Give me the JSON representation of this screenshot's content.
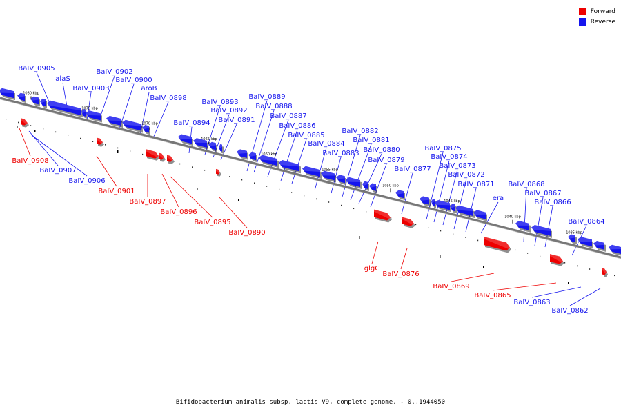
{
  "caption": "Bifidobacterium animalis subsp. lactis V9, complete genome. - 0..1944050",
  "legend": [
    {
      "label": "Forward",
      "color": "#ee0000"
    },
    {
      "label": "Reverse",
      "color": "#1515ee"
    }
  ],
  "colors": {
    "forward": "#ee0000",
    "reverse": "#1515ee",
    "backbone": "#777777"
  },
  "ticks": [
    "1080 kbp",
    "1075 kbp",
    "1070 kbp",
    "1065 kbp",
    "1060 kbp",
    "1055 kbp",
    "1050 kbp",
    "1045 kbp",
    "1040 kbp",
    "1035 kbp"
  ],
  "reverse_labels": [
    "BaIV_0905",
    "alaS",
    "BaIV_0902",
    "BaIV_0903",
    "BaIV_0900",
    "aroB",
    "BaIV_0898",
    "BaIV_0893",
    "BaIV_0892",
    "BaIV_0891",
    "BaIV_0894",
    "BaIV_0889",
    "BaIV_0888",
    "BaIV_0887",
    "BaIV_0886",
    "BaIV_0885",
    "BaIV_0884",
    "BaIV_0883",
    "BaIV_0882",
    "BaIV_0881",
    "BaIV_0880",
    "BaIV_0879",
    "BaIV_0877",
    "BaIV_0875",
    "BaIV_0874",
    "BaIV_0873",
    "BaIV_0872",
    "BaIV_0871",
    "era",
    "BaIV_0868",
    "BaIV_0867",
    "BaIV_0866",
    "BaIV_0864",
    "BaIV_0907",
    "BaIV_0906",
    "BaIV_0863",
    "BaIV_0862"
  ],
  "forward_labels": [
    "BaIV_0908",
    "BaIV_0901",
    "BaIV_0897",
    "BaIV_0896",
    "BaIV_0895",
    "BaIV_0890",
    "glgC",
    "BaIV_0876",
    "BaIV_0869",
    "BaIV_0865"
  ]
}
